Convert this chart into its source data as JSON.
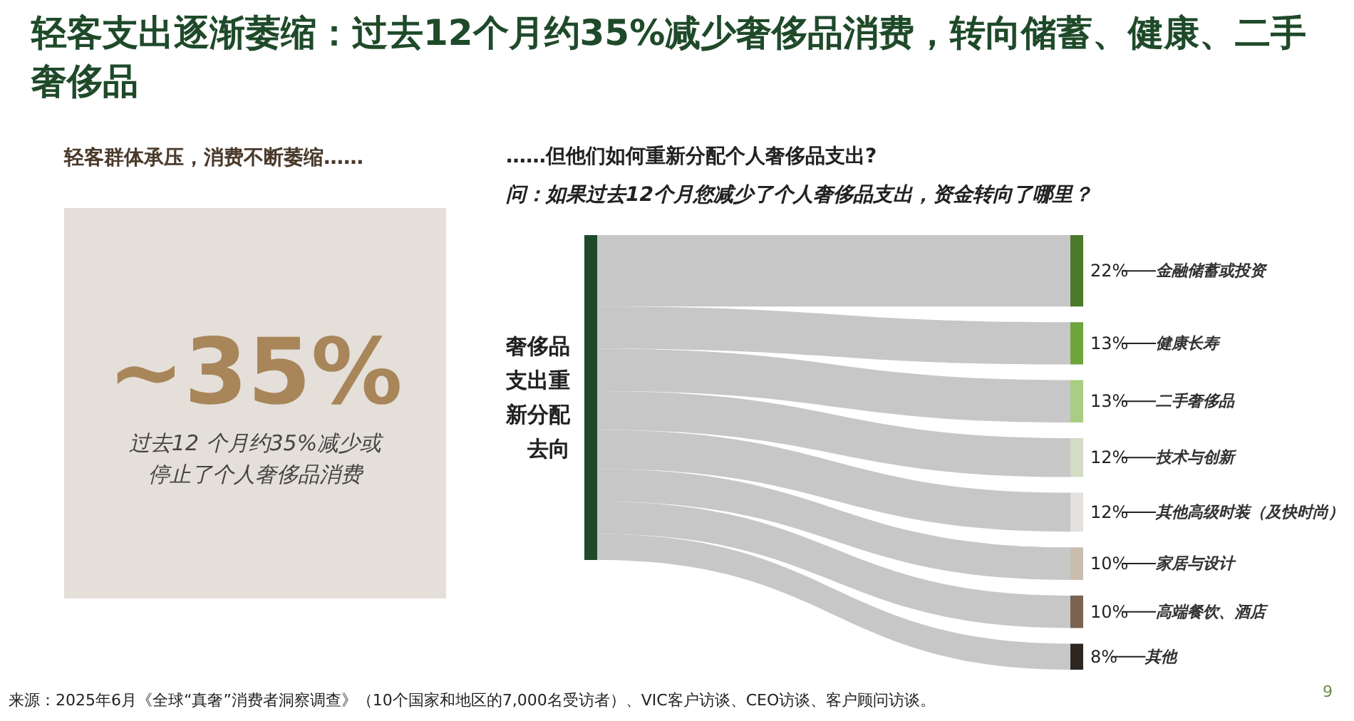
{
  "chart_data": [
    {
      "type": "other",
      "title": "轻客支出逐渐萎缩：过去12个月约35%减少奢侈品消费，转向储蓄、健康、二手奢侈品",
      "subtitle": "轻客群体承压，消费不断萎缩……",
      "color": "#e5dfd9",
      "annotations": [
        "~35%",
        "过去12 个月约35%减少或停止了个人奢侈品消费",
        "来源：2025年6月《全球“真奢”消费者洞察调查》（10个国家和地区的7,000名受访者）、VIC客户访谈、CEO访谈、客户顾问访谈。",
        "9"
      ]
    },
    {
      "type": "other",
      "title": "……但他们如何重新分配个人奢侈品支出?",
      "subtitle": "问：如果过去12个月您减少了个人奢侈品支出，资金转向了哪里？",
      "color": "#1f4a2a",
      "annotations": [
        "奢侈品支出重新分配去向"
      ],
      "categories": [
        "金融储蓄或投资",
        "健康长寿",
        "二手奢侈品",
        "技术与创新",
        "其他高级时装（及快时尚）",
        "家居与设计",
        "高端餐饮、酒店",
        "其他"
      ],
      "values": [
        22,
        13,
        13,
        12,
        12,
        10,
        10,
        8
      ],
      "value_labels": [
        "22%",
        "13%",
        "13%",
        "12%",
        "12%",
        "10%",
        "10%",
        "8%"
      ],
      "colors": [
        "#4c7a2b",
        "#6da43c",
        "#a9cd83",
        "#d3dcc4",
        "#e4e0dd",
        "#cbbdae",
        "#7a6350",
        "#2e2722"
      ]
    }
  ]
}
